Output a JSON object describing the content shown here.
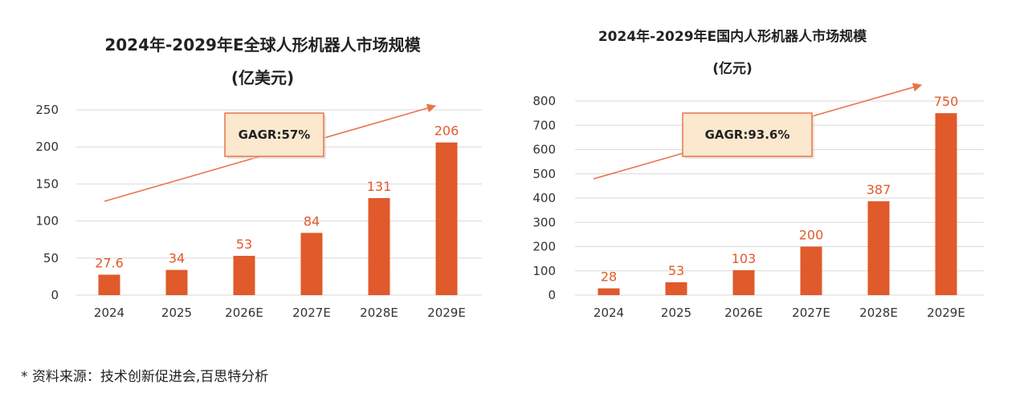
{
  "colors": {
    "bar": "#e05a2b",
    "data_label": "#e05a2b",
    "arrow": "#e8744a",
    "grid": "#d9d9d9",
    "callout_fill": "#fbe8cf",
    "callout_border": "#e8744a"
  },
  "footnote": "* 资料来源：技术创新促进会,百思特分析",
  "chart_data": [
    {
      "type": "bar",
      "title": "2024年-2029年E全球人形机器人市场规模",
      "subtitle": "(亿美元)",
      "categories": [
        "2024",
        "2025",
        "2026E",
        "2027E",
        "2028E",
        "2029E"
      ],
      "values": [
        27.6,
        34,
        53,
        84,
        131,
        206
      ],
      "data_labels": [
        "27.6",
        "34",
        "53",
        "84",
        "131",
        "206"
      ],
      "ylim": [
        0,
        250
      ],
      "yticks": [
        0,
        50,
        100,
        150,
        200,
        250
      ],
      "grid": true,
      "annotation": "GAGR:57%"
    },
    {
      "type": "bar",
      "title": "2024年-2029年E国内人形机器人市场规模",
      "subtitle": "(亿元)",
      "categories": [
        "2024",
        "2025",
        "2026E",
        "2027E",
        "2028E",
        "2029E"
      ],
      "values": [
        28,
        53,
        103,
        200,
        387,
        750
      ],
      "data_labels": [
        "28",
        "53",
        "103",
        "200",
        "387",
        "750"
      ],
      "ylim": [
        0,
        800
      ],
      "yticks": [
        0,
        100,
        200,
        300,
        400,
        500,
        600,
        700,
        800
      ],
      "grid": true,
      "annotation": "GAGR:93.6%"
    }
  ]
}
